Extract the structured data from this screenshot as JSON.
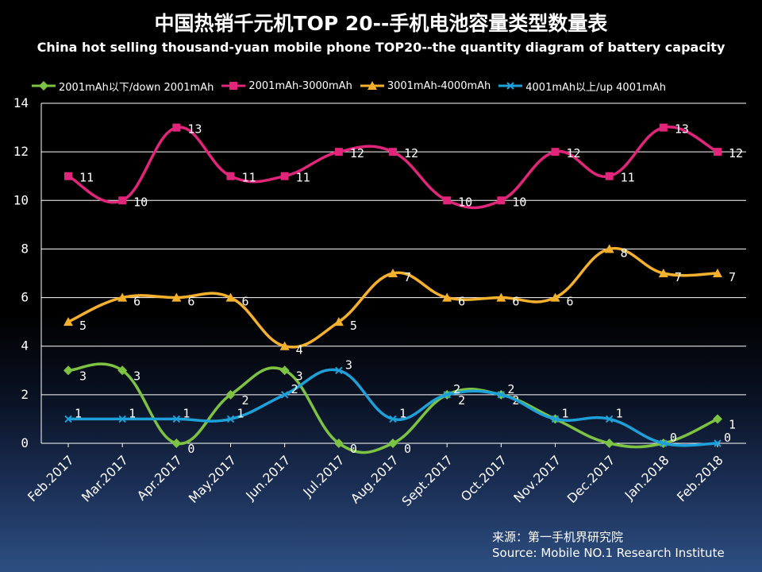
{
  "chart_data": {
    "type": "line",
    "title": "中国热销千元机TOP 20--手机电池容量类型数量表",
    "subtitle": "China hot selling thousand-yuan mobile phone TOP20--the quantity diagram of battery capacity",
    "categories": [
      "Feb.2017",
      "Mar.2017",
      "Apr.2017",
      "May.2017",
      "Jun.2017",
      "Jul.2017",
      "Aug.2017",
      "Sept.2017",
      "Oct.2017",
      "Nov.2017",
      "Dec.2017",
      "Jan.2018",
      "Feb.2018"
    ],
    "ylim": [
      0,
      14
    ],
    "yticks": [
      "0",
      "2",
      "4",
      "6",
      "8",
      "10",
      "12",
      "14"
    ],
    "grid": true,
    "legend_position": "top",
    "series": [
      {
        "name": "2001mAh以下/down 2001mAh",
        "color": "#7dc242",
        "marker": "diamond",
        "values": [
          3,
          3,
          0,
          2,
          3,
          0,
          0,
          2,
          2,
          1,
          0,
          0,
          1
        ]
      },
      {
        "name": "2001mAh-3000mAh",
        "color": "#e0257a",
        "marker": "square",
        "values": [
          11,
          10,
          13,
          11,
          11,
          12,
          12,
          10,
          10,
          12,
          11,
          13,
          12
        ]
      },
      {
        "name": "3001mAh-4000mAh",
        "color": "#f5b12e",
        "marker": "triangle",
        "values": [
          5,
          6,
          6,
          6,
          4,
          5,
          7,
          6,
          6,
          6,
          8,
          7,
          7
        ]
      },
      {
        "name": "4001mAh以上/up 4001mAh",
        "color": "#1ea0d8",
        "marker": "x",
        "values": [
          1,
          1,
          1,
          1,
          2,
          3,
          1,
          2,
          2,
          1,
          1,
          0,
          0
        ]
      }
    ],
    "data_labels": {
      "s0": [
        "3",
        "3",
        "0",
        "2",
        "3",
        "0",
        "0",
        "2",
        "2",
        "",
        "",
        "",
        "1"
      ],
      "s1": [
        "11",
        "10",
        "13",
        "11",
        "11",
        "12",
        "12",
        "10",
        "10",
        "12",
        "11",
        "13",
        "12"
      ],
      "s2": [
        "5",
        "6",
        "6",
        "6",
        "4",
        "5",
        "7",
        "6",
        "6",
        "6",
        "8",
        "7",
        "7"
      ],
      "s3": [
        "1",
        "1",
        "1",
        "1",
        "2",
        "3",
        "1",
        "2",
        "2",
        "1",
        "1",
        "0",
        "0"
      ]
    }
  },
  "source": {
    "line_cn": "来源：第一手机界研究院",
    "line_en": "Source: Mobile NO.1 Research Institute"
  }
}
